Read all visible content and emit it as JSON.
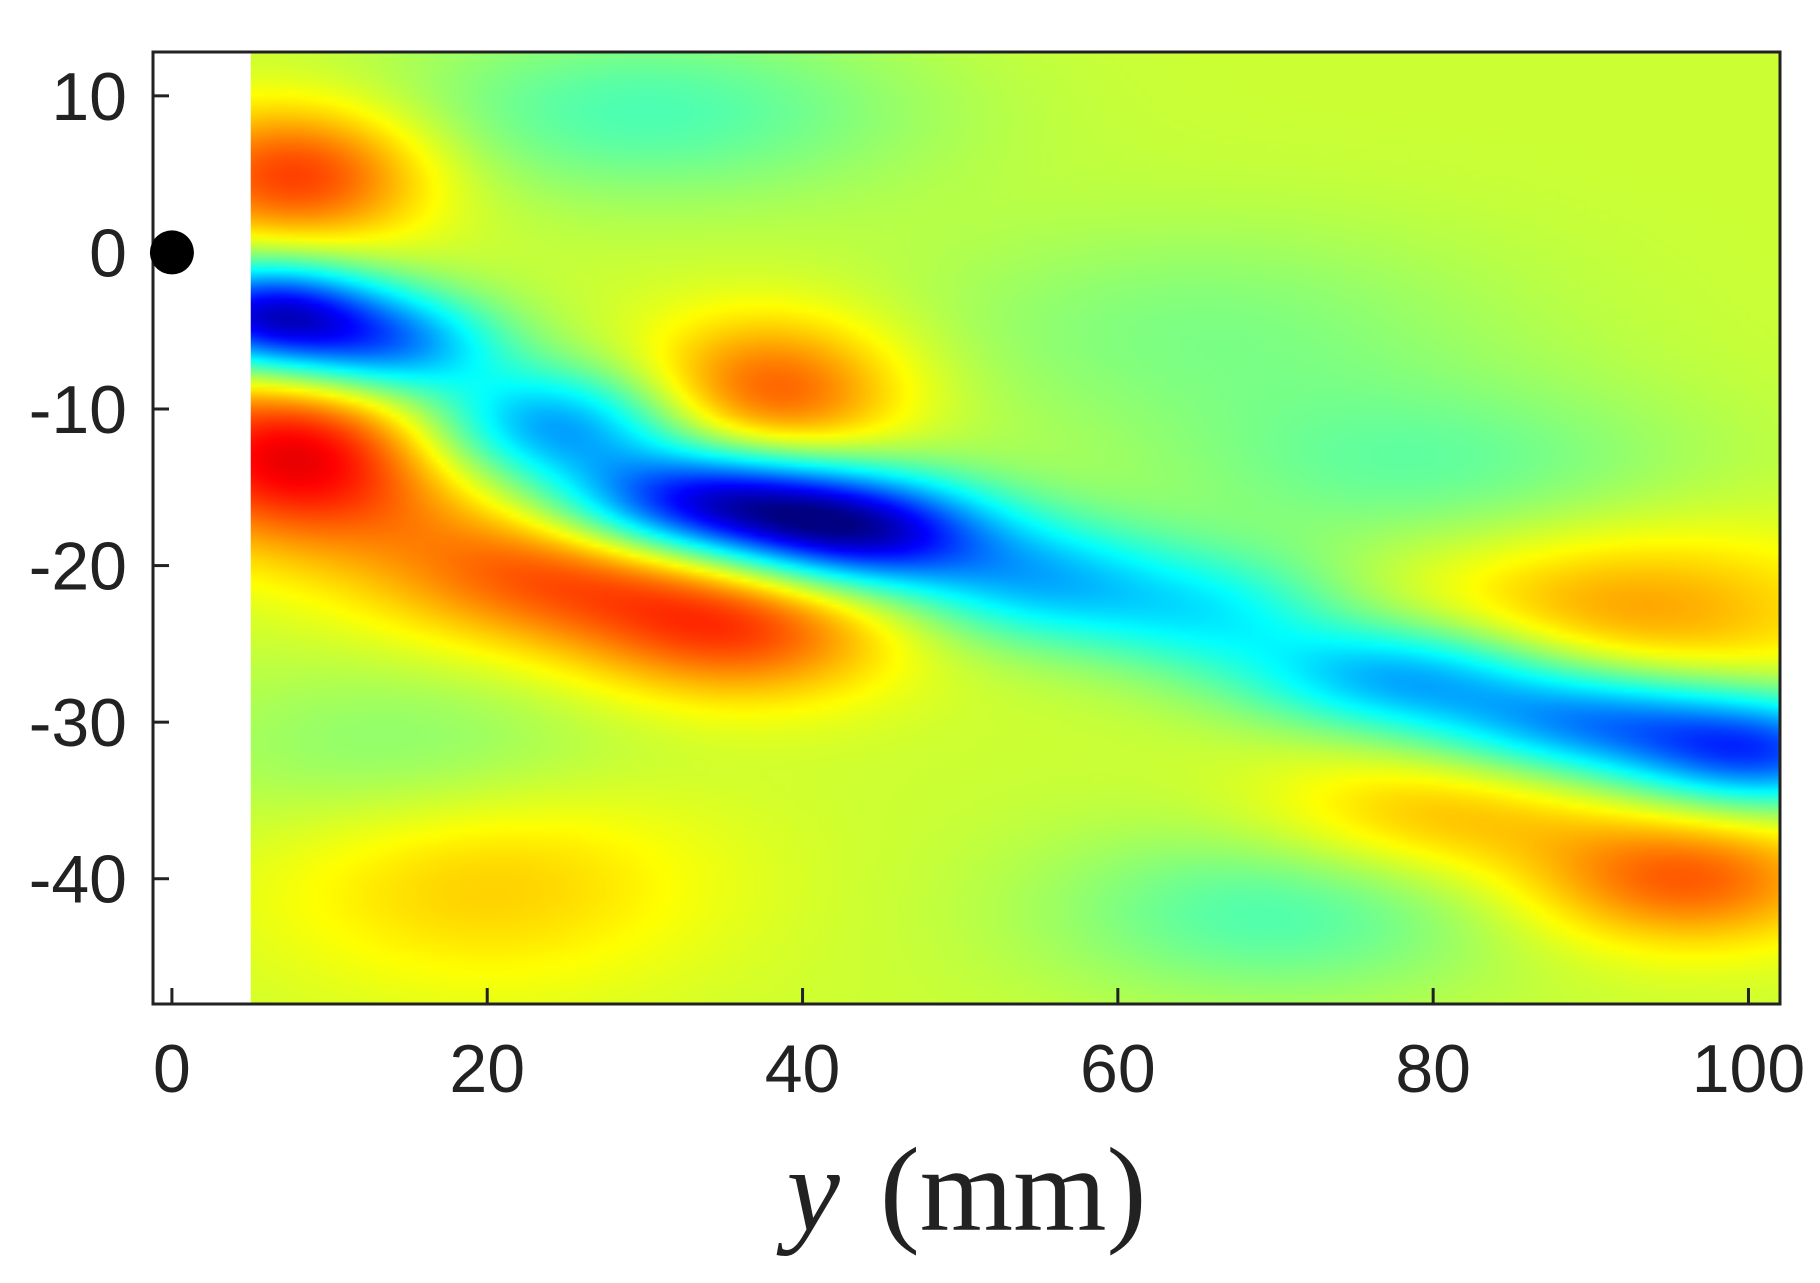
{
  "chart_data": {
    "type": "heatmap",
    "title": "",
    "xlabel_var": "y",
    "xlabel_unit": "(mm)",
    "ylabel": "",
    "xlim": [
      -1.2,
      102
    ],
    "ylim": [
      -48,
      12.8
    ],
    "x_ticks": [
      "0",
      "20",
      "40",
      "60",
      "80",
      "100"
    ],
    "y_ticks": [
      "10",
      "0",
      "-10",
      "-20",
      "-30",
      "-40"
    ],
    "data_x_range": [
      5,
      102
    ],
    "colormap": "jet",
    "marker": {
      "x": 0,
      "y": 0,
      "color": "#000000"
    },
    "features": [
      {
        "x": 6,
        "y": -4,
        "value": -0.95,
        "sx": 5,
        "sy": 2.4
      },
      {
        "x": 14,
        "y": -6,
        "value": -0.6,
        "sx": 5,
        "sy": 2.4
      },
      {
        "x": 24,
        "y": -11,
        "value": -0.6,
        "sx": 6,
        "sy": 2.6
      },
      {
        "x": 34,
        "y": -16,
        "value": -1.0,
        "sx": 7,
        "sy": 2.5
      },
      {
        "x": 44,
        "y": -18,
        "value": -0.85,
        "sx": 6,
        "sy": 2.5
      },
      {
        "x": 55,
        "y": -21,
        "value": -0.45,
        "sx": 6,
        "sy": 2.8
      },
      {
        "x": 66,
        "y": -23,
        "value": -0.35,
        "sx": 6,
        "sy": 2.8
      },
      {
        "x": 78,
        "y": -27,
        "value": -0.55,
        "sx": 7,
        "sy": 2.5
      },
      {
        "x": 90,
        "y": -30,
        "value": -0.6,
        "sx": 7,
        "sy": 2.5
      },
      {
        "x": 101,
        "y": -32,
        "value": -0.7,
        "sx": 6,
        "sy": 2.5
      },
      {
        "x": 8,
        "y": 5,
        "value": 0.5,
        "sx": 6,
        "sy": 3.2
      },
      {
        "x": 8,
        "y": -13,
        "value": 0.65,
        "sx": 7,
        "sy": 4
      },
      {
        "x": 24,
        "y": -20,
        "value": 0.45,
        "sx": 8,
        "sy": 3.5
      },
      {
        "x": 36,
        "y": -24,
        "value": 0.45,
        "sx": 7,
        "sy": 3.2
      },
      {
        "x": 38,
        "y": -9,
        "value": 0.45,
        "sx": 6,
        "sy": 3.5
      },
      {
        "x": 92,
        "y": -23,
        "value": 0.3,
        "sx": 10,
        "sy": 4
      },
      {
        "x": 96,
        "y": -40,
        "value": 0.42,
        "sx": 7,
        "sy": 3
      },
      {
        "x": 80,
        "y": -36,
        "value": 0.25,
        "sx": 8,
        "sy": 3
      },
      {
        "x": 20,
        "y": -40,
        "value": 0.2,
        "sx": 10,
        "sy": 5
      },
      {
        "x": 30,
        "y": 9,
        "value": -0.25,
        "sx": 12,
        "sy": 4
      },
      {
        "x": 70,
        "y": -42,
        "value": -0.25,
        "sx": 10,
        "sy": 4
      },
      {
        "x": 80,
        "y": -14,
        "value": -0.2,
        "sx": 12,
        "sy": 4
      },
      {
        "x": 15,
        "y": -32,
        "value": -0.15,
        "sx": 10,
        "sy": 4
      },
      {
        "x": 65,
        "y": -5,
        "value": -0.15,
        "sx": 14,
        "sy": 5
      }
    ]
  }
}
